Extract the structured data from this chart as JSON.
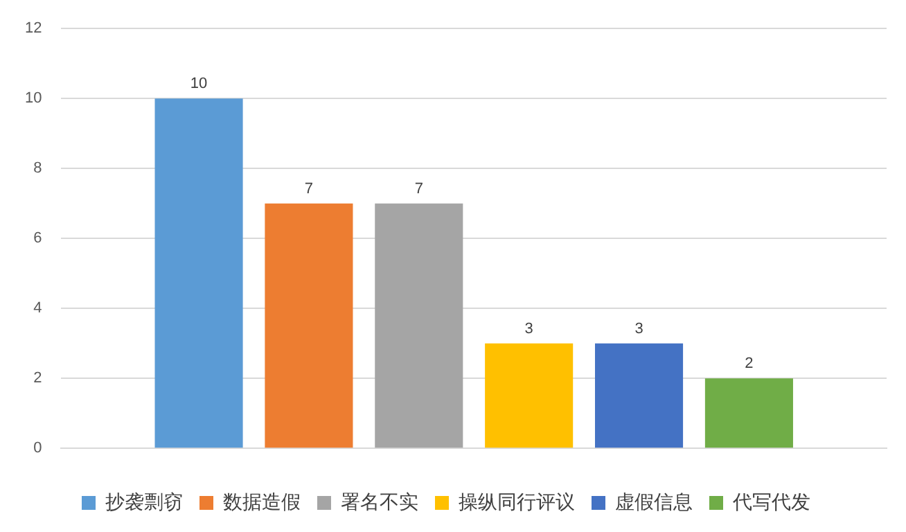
{
  "chart_data": {
    "type": "bar",
    "categories": [
      null
    ],
    "series": [
      {
        "name": "抄袭剽窃",
        "color": "#5b9bd5",
        "values": [
          10
        ]
      },
      {
        "name": "数据造假",
        "color": "#ed7d31",
        "values": [
          7
        ]
      },
      {
        "name": "署名不实",
        "color": "#a5a5a5",
        "values": [
          7
        ]
      },
      {
        "name": "操纵同行评议",
        "color": "#ffc000",
        "values": [
          3
        ]
      },
      {
        "name": "虚假信息",
        "color": "#4472c4",
        "values": [
          3
        ]
      },
      {
        "name": "代写代发",
        "color": "#70ad47",
        "values": [
          2
        ]
      }
    ],
    "ylim": [
      0,
      12
    ],
    "yticks": [
      0,
      2,
      4,
      6,
      8,
      10,
      12
    ],
    "grid": "y",
    "legend": "bottom",
    "data_labels": true
  }
}
